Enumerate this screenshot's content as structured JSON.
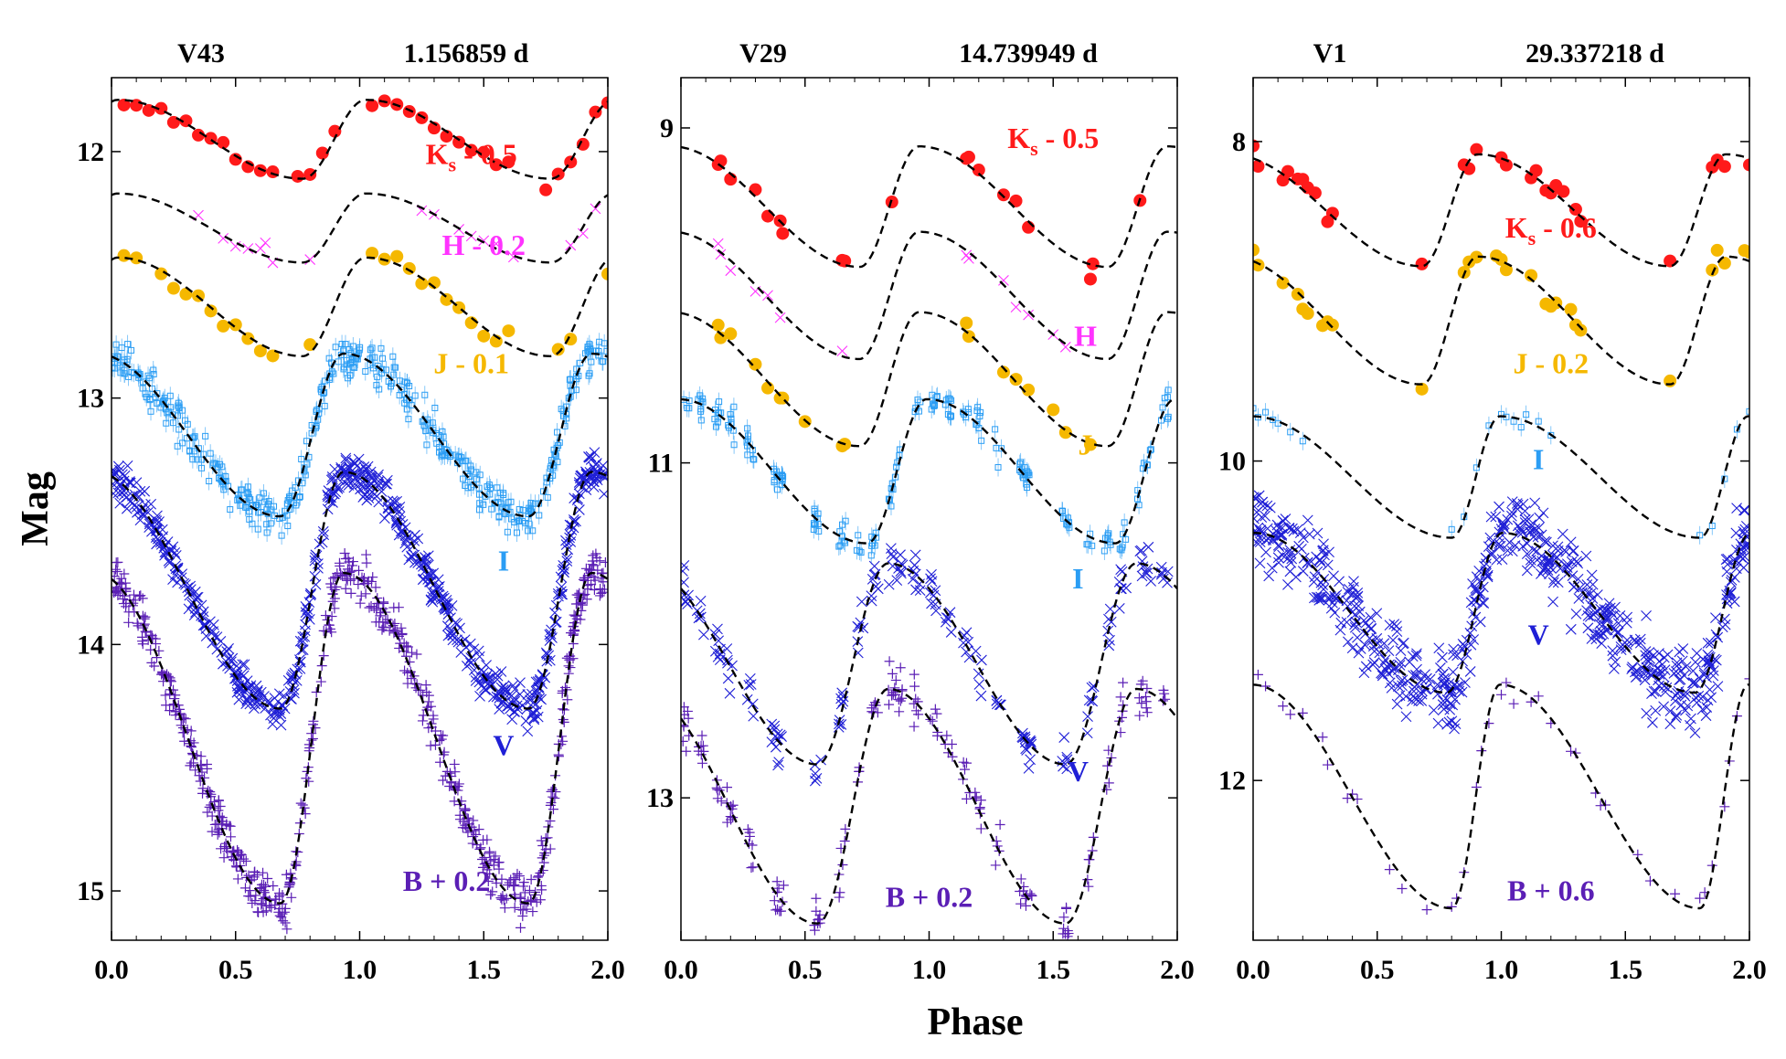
{
  "colors": {
    "Ks": "#ff1a1a",
    "H": "#ff33ff",
    "J": "#f5b800",
    "I": "#2a9df4",
    "V": "#1f1fd6",
    "B": "#5b1fb5"
  },
  "axis_labels": {
    "x": "Phase",
    "y": "Mag"
  },
  "chart_data": [
    {
      "type": "scatter",
      "star": "V43",
      "period": "1.156859 d",
      "xlabel": "Phase",
      "ylabel": "Mag",
      "xlim": [
        0.0,
        2.0
      ],
      "ylim": [
        15.2,
        11.7
      ],
      "xticks": [
        "0.0",
        "0.5",
        "1.0",
        "1.5",
        "2.0"
      ],
      "yticks": [
        "12",
        "13",
        "14",
        "15"
      ],
      "series": [
        {
          "band": "Ks",
          "label": "Ks - 0.5",
          "marker": "dot",
          "min_phase": 0.77,
          "mean": 11.95,
          "amp": 0.16,
          "skew": 0.3,
          "noise": 0.02,
          "density": 1.0,
          "phases": [
            0.05,
            0.1,
            0.15,
            0.2,
            0.25,
            0.3,
            0.35,
            0.4,
            0.45,
            0.5,
            0.55,
            0.6,
            0.65,
            0.75,
            0.8,
            0.85,
            0.9,
            1.05,
            1.1,
            1.15,
            1.2,
            1.25,
            1.3,
            1.35,
            1.4,
            1.45,
            1.5,
            1.55,
            1.6,
            1.75,
            1.8,
            1.85,
            1.9,
            1.95,
            2.0
          ],
          "label_phase": 1.45,
          "label_mag": 12.05
        },
        {
          "band": "H",
          "label": "H - 0.2",
          "marker": "cross",
          "min_phase": 0.77,
          "mean": 12.31,
          "amp": 0.14,
          "skew": 0.3,
          "noise": 0.02,
          "density": 0.7,
          "phases": [
            0.35,
            0.45,
            0.5,
            0.55,
            0.6,
            0.62,
            0.65,
            0.8,
            1.25,
            1.3,
            1.4,
            1.45,
            1.5,
            1.55,
            1.62,
            1.85,
            1.9,
            1.95
          ],
          "label_phase": 1.5,
          "label_mag": 12.42
        },
        {
          "band": "J",
          "label": "J - 0.1",
          "marker": "dot",
          "min_phase": 0.77,
          "mean": 12.63,
          "amp": 0.2,
          "skew": 0.3,
          "noise": 0.025,
          "density": 1.0,
          "phases": [
            0.05,
            0.1,
            0.2,
            0.25,
            0.3,
            0.35,
            0.4,
            0.45,
            0.5,
            0.55,
            0.6,
            0.65,
            0.8,
            1.05,
            1.1,
            1.15,
            1.2,
            1.25,
            1.3,
            1.35,
            1.4,
            1.45,
            1.5,
            1.55,
            1.6,
            1.8,
            1.85,
            2.0
          ],
          "label_phase": 1.45,
          "label_mag": 12.9
        },
        {
          "band": "I",
          "label": "I",
          "marker": "square",
          "min_phase": 0.68,
          "mean": 13.15,
          "amp": 0.33,
          "skew": 0.3,
          "noise": 0.04,
          "density": 1.0,
          "phases": "dense",
          "label_phase": 1.58,
          "label_mag": 13.7
        },
        {
          "band": "V",
          "label": "V",
          "marker": "x",
          "min_phase": 0.68,
          "mean": 13.78,
          "amp": 0.48,
          "skew": 0.3,
          "noise": 0.04,
          "density": 1.0,
          "phases": "dense",
          "label_phase": 1.58,
          "label_mag": 14.45
        },
        {
          "band": "B",
          "label": "B + 0.2",
          "marker": "plus",
          "min_phase": 0.68,
          "mean": 14.38,
          "amp": 0.67,
          "skew": 0.3,
          "noise": 0.05,
          "density": 1.0,
          "phases": "dense",
          "label_phase": 1.35,
          "label_mag": 15.0
        }
      ]
    },
    {
      "type": "scatter",
      "star": "V29",
      "period": "14.739949 d",
      "xlabel": "Phase",
      "ylabel": "Mag",
      "xlim": [
        0.0,
        2.0
      ],
      "ylim": [
        13.85,
        8.7
      ],
      "xticks": [
        "0.0",
        "0.5",
        "1.0",
        "1.5",
        "2.0"
      ],
      "yticks": [
        "9",
        "11",
        "13"
      ],
      "series": [
        {
          "band": "Ks",
          "label": "Ks - 0.5",
          "marker": "dot",
          "min_phase": 0.72,
          "mean": 9.47,
          "amp": 0.36,
          "skew": 0.4,
          "noise": 0.04,
          "density": 1.0,
          "phases": [
            0.15,
            0.16,
            0.2,
            0.3,
            0.35,
            0.4,
            0.41,
            0.65,
            0.66,
            0.85,
            1.15,
            1.16,
            1.2,
            1.3,
            1.35,
            1.4,
            1.65,
            1.66,
            1.85
          ],
          "label_phase": 1.5,
          "label_mag": 9.12
        },
        {
          "band": "H",
          "label": "H",
          "marker": "cross",
          "min_phase": 0.72,
          "mean": 10.0,
          "amp": 0.38,
          "skew": 0.4,
          "noise": 0.04,
          "density": 1.0,
          "phases": [
            0.15,
            0.16,
            0.2,
            0.3,
            0.35,
            0.4,
            0.65,
            1.15,
            1.16,
            1.3,
            1.35,
            1.4,
            1.5,
            1.55
          ],
          "label_phase": 1.63,
          "label_mag": 10.3
        },
        {
          "band": "J",
          "label": "J",
          "marker": "dot",
          "min_phase": 0.72,
          "mean": 10.5,
          "amp": 0.4,
          "skew": 0.4,
          "noise": 0.04,
          "density": 1.0,
          "phases": [
            0.15,
            0.16,
            0.2,
            0.3,
            0.35,
            0.4,
            0.41,
            0.5,
            0.65,
            0.66,
            1.15,
            1.16,
            1.3,
            1.35,
            1.4,
            1.5,
            1.55,
            1.65
          ],
          "label_phase": 1.63,
          "label_mag": 10.95
        },
        {
          "band": "I",
          "label": "I",
          "marker": "square",
          "min_phase": 0.75,
          "mean": 11.05,
          "amp": 0.43,
          "skew": 0.4,
          "noise": 0.05,
          "density": 1.0,
          "phases": "clumped",
          "label_phase": 1.6,
          "label_mag": 11.75
        },
        {
          "band": "V",
          "label": "V",
          "marker": "x",
          "min_phase": 0.55,
          "mean": 12.2,
          "amp": 0.6,
          "skew": 0.1,
          "noise": 0.06,
          "density": 1.0,
          "phases": "clumped",
          "label_phase": 1.6,
          "label_mag": 12.9
        },
        {
          "band": "B",
          "label": "B + 0.2",
          "marker": "plus",
          "min_phase": 0.55,
          "mean": 13.05,
          "amp": 0.7,
          "skew": 0.1,
          "noise": 0.07,
          "density": 1.0,
          "phases": "clumped",
          "label_phase": 1.0,
          "label_mag": 13.65
        }
      ]
    },
    {
      "type": "scatter",
      "star": "V1",
      "period": "29.337218 d",
      "xlabel": "Phase",
      "ylabel": "Mag",
      "xlim": [
        0.0,
        2.0
      ],
      "ylim": [
        13.0,
        7.6
      ],
      "xticks": [
        "0.0",
        "0.5",
        "1.0",
        "1.5",
        "2.0"
      ],
      "yticks": [
        "8",
        "10",
        "12"
      ],
      "series": [
        {
          "band": "Ks",
          "label": "Ks - 0.6",
          "marker": "dot",
          "min_phase": 0.68,
          "mean": 8.43,
          "amp": 0.35,
          "skew": 0.5,
          "noise": 0.05,
          "density": 1.0,
          "phases": [
            0.0,
            0.02,
            0.12,
            0.14,
            0.18,
            0.2,
            0.22,
            0.25,
            0.3,
            0.32,
            0.68,
            0.85,
            0.87,
            0.9,
            1.0,
            1.02,
            1.12,
            1.14,
            1.18,
            1.2,
            1.22,
            1.25,
            1.3,
            1.32,
            1.68,
            1.85,
            1.87,
            1.9,
            2.0
          ],
          "label_phase": 1.2,
          "label_mag": 8.6
        },
        {
          "band": "J",
          "label": "J - 0.2",
          "marker": "dot",
          "min_phase": 0.68,
          "mean": 9.12,
          "amp": 0.4,
          "skew": 0.5,
          "noise": 0.05,
          "density": 1.0,
          "phases": [
            0.0,
            0.02,
            0.12,
            0.18,
            0.2,
            0.22,
            0.28,
            0.3,
            0.32,
            0.68,
            0.85,
            0.87,
            0.9,
            0.98,
            1.0,
            1.02,
            1.12,
            1.18,
            1.2,
            1.22,
            1.28,
            1.3,
            1.32,
            1.68,
            1.85,
            1.87,
            1.9,
            1.98,
            2.0
          ],
          "label_phase": 1.2,
          "label_mag": 9.45
        },
        {
          "band": "I",
          "label": "I",
          "marker": "square",
          "min_phase": 0.8,
          "mean": 10.1,
          "amp": 0.38,
          "skew": 0.7,
          "noise": 0.03,
          "density": 1.0,
          "phases": [
            0.0,
            0.02,
            0.05,
            0.08,
            0.1,
            0.15,
            0.2,
            0.8,
            0.85,
            0.9,
            0.95,
            1.0,
            1.02,
            1.05,
            1.08,
            1.1,
            1.15,
            1.2,
            1.8,
            1.85,
            1.9,
            1.95,
            2.0
          ],
          "label_phase": 1.15,
          "label_mag": 10.05
        },
        {
          "band": "V",
          "label": "V",
          "marker": "x",
          "min_phase": 0.78,
          "mean": 10.95,
          "amp": 0.5,
          "skew": 0.5,
          "noise": 0.12,
          "density": 1.0,
          "phases": "dense",
          "label_phase": 1.15,
          "label_mag": 11.15
        },
        {
          "band": "B",
          "label": "B + 0.6",
          "marker": "plus",
          "min_phase": 0.8,
          "mean": 12.1,
          "amp": 0.7,
          "skew": 0.7,
          "noise": 0.05,
          "density": 1.0,
          "phases": [
            0.02,
            0.05,
            0.12,
            0.15,
            0.2,
            0.28,
            0.3,
            0.38,
            0.4,
            0.42,
            0.55,
            0.6,
            0.7,
            0.8,
            0.82,
            0.85,
            0.9,
            0.92,
            0.95,
            1.0,
            1.02,
            1.05,
            1.12,
            1.15,
            1.2,
            1.28,
            1.3,
            1.38,
            1.4,
            1.42,
            1.55,
            1.6,
            1.7,
            1.8,
            1.82,
            1.85,
            1.9,
            1.92,
            1.95,
            2.0
          ],
          "label_phase": 1.2,
          "label_mag": 12.75
        }
      ]
    }
  ]
}
